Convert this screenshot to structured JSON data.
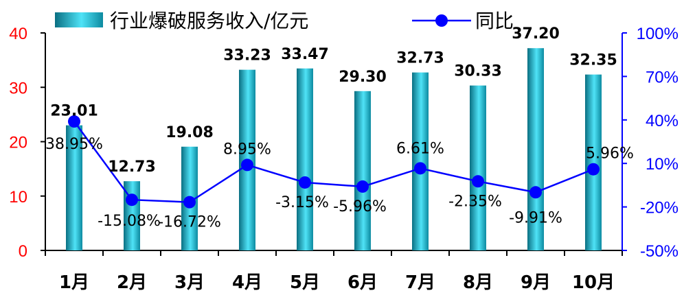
{
  "chart_data": {
    "type": "bar",
    "categories": [
      "1月",
      "2月",
      "3月",
      "4月",
      "5月",
      "6月",
      "7月",
      "8月",
      "9月",
      "10月"
    ],
    "series": [
      {
        "name": "行业爆破服务收入/亿元",
        "type": "bar",
        "axis": "left",
        "values": [
          23.01,
          12.73,
          19.08,
          33.23,
          33.47,
          29.3,
          32.73,
          30.33,
          37.2,
          32.35
        ],
        "labels": [
          "23.01",
          "12.73",
          "19.08",
          "33.23",
          "33.47",
          "29.30",
          "32.73",
          "30.33",
          "37.20",
          "32.35"
        ]
      },
      {
        "name": "同比",
        "type": "line",
        "axis": "right",
        "values": [
          38.95,
          -15.08,
          -16.72,
          8.95,
          -3.15,
          -5.96,
          6.61,
          -2.35,
          -9.91,
          5.96
        ],
        "labels": [
          "38.95%",
          "-15.08%",
          "-16.72%",
          "8.95%",
          "-3.15%",
          "-5.96%",
          "6.61%",
          "-2.35%",
          "-9.91%",
          "5.96%"
        ]
      }
    ],
    "y_left": {
      "lim": [
        0,
        40
      ],
      "ticks": [
        "0",
        "10",
        "20",
        "30",
        "40"
      ],
      "color": "#ff0000"
    },
    "y_right": {
      "lim": [
        -50,
        100
      ],
      "ticks": [
        "-50%",
        "-20%",
        "10%",
        "40%",
        "70%",
        "100%"
      ],
      "color": "#0000ff"
    },
    "colors": {
      "bar_dark": "#0a6f82",
      "bar_light": "#4fe3f7",
      "line": "#0000ff",
      "marker": "#0000ff",
      "left_axis": "#ff0000",
      "right_axis": "#0000ff"
    },
    "legend": "top",
    "grid": false
  }
}
